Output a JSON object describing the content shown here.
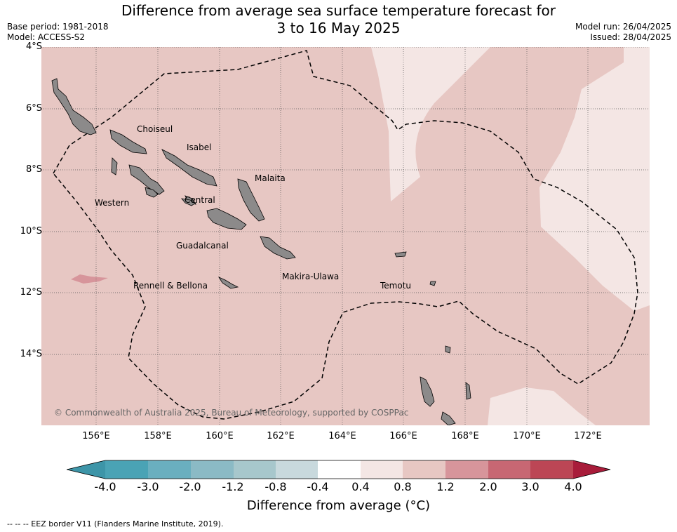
{
  "title": {
    "line1": "Difference from average sea surface temperature forecast for",
    "line2": "3 to 16 May 2025"
  },
  "meta_left": {
    "base_period": "Base period: 1981-2018",
    "model": "Model: ACCESS-S2"
  },
  "meta_right": {
    "model_run": "Model run: 26/04/2025",
    "issued": "Issued: 28/04/2025"
  },
  "map": {
    "lat_labels": [
      "4°S",
      "6°S",
      "8°S",
      "10°S",
      "12°S",
      "14°S"
    ],
    "lon_labels": [
      "156°E",
      "158°E",
      "160°E",
      "162°E",
      "164°E",
      "166°E",
      "168°E",
      "170°E",
      "172°E"
    ],
    "regions": [
      "Choiseul",
      "Isabel",
      "Malaita",
      "Western",
      "Central",
      "Guadalcanal",
      "Makira-Ulawa",
      "Rennell & Bellona",
      "Temotu"
    ],
    "copyright": "© Commonwealth of Australia 2025, Bureau of Meteorology, supported by COSPPac",
    "colors": {
      "land": "#8c8a8a",
      "anom_0_8_1_2": "#e7c7c3",
      "anom_0_4_0_8": "#f4e6e4",
      "anom_1_2_2_0": "#d7959b"
    }
  },
  "colorbar": {
    "ticks": [
      "-4.0",
      "-3.0",
      "-2.0",
      "-1.2",
      "-0.8",
      "-0.4",
      "0.4",
      "0.8",
      "1.2",
      "2.0",
      "3.0",
      "4.0"
    ],
    "colors": [
      "#3d95a8",
      "#4aa3b5",
      "#6aafbf",
      "#8bbac5",
      "#a7c7cc",
      "#c8d9dd",
      "#ffffff",
      "#f4e6e4",
      "#e7c7c3",
      "#d7959b",
      "#c76773",
      "#bc4655",
      "#a81c3a"
    ],
    "label": "Difference from average (°C)"
  },
  "footnote": "-- -- -- EEZ border V11 (Flanders Marine Institute, 2019)."
}
